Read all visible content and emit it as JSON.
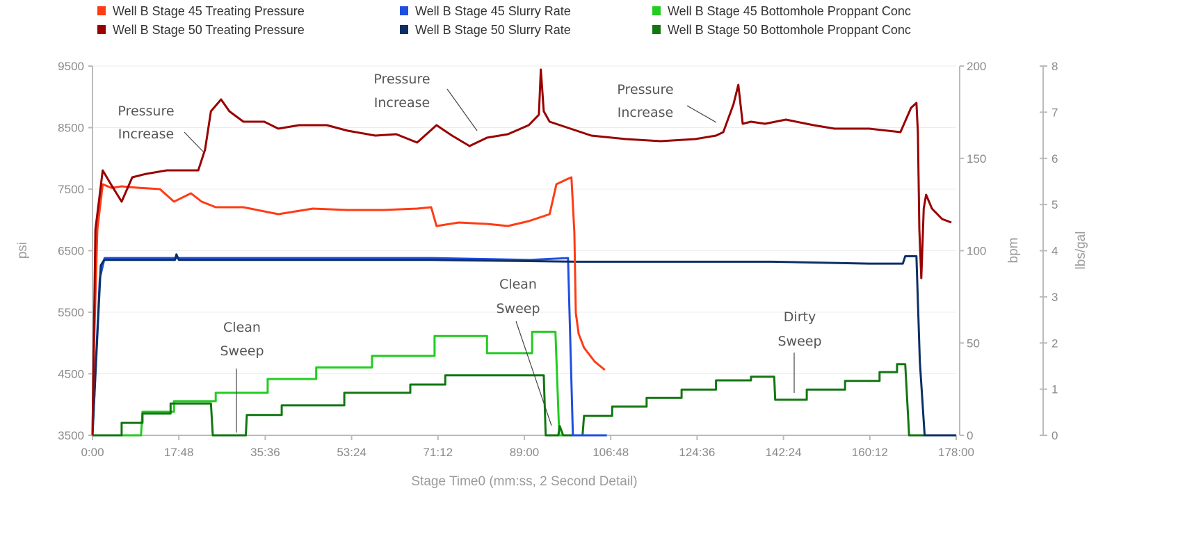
{
  "chart_data": {
    "type": "line",
    "xlabel": "Stage Time0 (mm:ss, 2 Second Detail)",
    "x_ticks": [
      "0:00",
      "17:48",
      "35:36",
      "53:24",
      "71:12",
      "89:00",
      "106:48",
      "124:36",
      "142:24",
      "160:12",
      "178:00"
    ],
    "xlim_minutes": [
      0,
      178
    ],
    "y_axes": [
      {
        "label": "psi",
        "lim": [
          3500,
          9500
        ],
        "ticks": [
          "3500",
          "4500",
          "5500",
          "6500",
          "7500",
          "8500",
          "9500"
        ],
        "side": "left"
      },
      {
        "label": "bpm",
        "lim": [
          0,
          200
        ],
        "ticks": [
          "0",
          "50",
          "100",
          "150",
          "200"
        ],
        "side": "right"
      },
      {
        "label": "lbs/gal",
        "lim": [
          0,
          8
        ],
        "ticks": [
          "0",
          "1",
          "2",
          "3",
          "4",
          "5",
          "6",
          "7",
          "8"
        ],
        "side": "right"
      }
    ],
    "grid": true,
    "legend_position": "top",
    "series": [
      {
        "name": "Well B Stage 45 Treating Pressure",
        "color": "#ff3b14",
        "axis": 0,
        "points": [
          [
            0,
            3500
          ],
          [
            0.3,
            4924
          ],
          [
            1,
            6845
          ],
          [
            2.1,
            7579
          ],
          [
            3.9,
            7522
          ],
          [
            6,
            7545
          ],
          [
            9.6,
            7522
          ],
          [
            13.9,
            7500
          ],
          [
            16.8,
            7297
          ],
          [
            20.3,
            7432
          ],
          [
            22.5,
            7297
          ],
          [
            25.4,
            7206
          ],
          [
            31.1,
            7206
          ],
          [
            38.3,
            7093
          ],
          [
            45.4,
            7184
          ],
          [
            52.6,
            7161
          ],
          [
            59.8,
            7161
          ],
          [
            66.9,
            7184
          ],
          [
            69.8,
            7206
          ],
          [
            70.9,
            6901
          ],
          [
            75.5,
            6958
          ],
          [
            81.3,
            6935
          ],
          [
            85.6,
            6901
          ],
          [
            89.9,
            6980
          ],
          [
            94.2,
            7093
          ],
          [
            95.6,
            7579
          ],
          [
            97.7,
            7658
          ],
          [
            98.7,
            7692
          ],
          [
            99.3,
            6800
          ],
          [
            99.6,
            5489
          ],
          [
            100.2,
            5150
          ],
          [
            101.3,
            4924
          ],
          [
            103.5,
            4698
          ],
          [
            105.6,
            4562
          ]
        ]
      },
      {
        "name": "Well B Stage 50 Treating Pressure",
        "color": "#990000",
        "axis": 0,
        "points": [
          [
            0,
            3500
          ],
          [
            0.6,
            6845
          ],
          [
            2.1,
            7805
          ],
          [
            3.8,
            7579
          ],
          [
            6,
            7297
          ],
          [
            8.2,
            7692
          ],
          [
            11,
            7748
          ],
          [
            15.3,
            7805
          ],
          [
            19.6,
            7805
          ],
          [
            21.8,
            7805
          ],
          [
            23.2,
            8144
          ],
          [
            24.4,
            8765
          ],
          [
            26.5,
            8958
          ],
          [
            28.2,
            8765
          ],
          [
            31.1,
            8596
          ],
          [
            35.4,
            8596
          ],
          [
            38.3,
            8483
          ],
          [
            42.6,
            8540
          ],
          [
            48.3,
            8540
          ],
          [
            52.6,
            8449
          ],
          [
            58.3,
            8370
          ],
          [
            62.6,
            8393
          ],
          [
            66.9,
            8257
          ],
          [
            70.9,
            8540
          ],
          [
            74.1,
            8370
          ],
          [
            77.7,
            8201
          ],
          [
            81.3,
            8336
          ],
          [
            85.6,
            8393
          ],
          [
            89.9,
            8540
          ],
          [
            92,
            8709
          ],
          [
            92.4,
            9444
          ],
          [
            93,
            8765
          ],
          [
            94.2,
            8596
          ],
          [
            98.5,
            8483
          ],
          [
            102.8,
            8370
          ],
          [
            109.9,
            8313
          ],
          [
            117.1,
            8280
          ],
          [
            124.2,
            8313
          ],
          [
            128.5,
            8370
          ],
          [
            130,
            8427
          ],
          [
            132.1,
            8879
          ],
          [
            133.1,
            9195
          ],
          [
            134,
            8562
          ],
          [
            135.7,
            8596
          ],
          [
            138.6,
            8562
          ],
          [
            142.9,
            8630
          ],
          [
            148.6,
            8540
          ],
          [
            152.9,
            8483
          ],
          [
            160.1,
            8483
          ],
          [
            166.5,
            8427
          ],
          [
            168.7,
            8822
          ],
          [
            169.8,
            8901
          ],
          [
            170.1,
            8427
          ],
          [
            170.4,
            6845
          ],
          [
            170.8,
            6054
          ],
          [
            171.3,
            7184
          ],
          [
            171.8,
            7410
          ],
          [
            173,
            7184
          ],
          [
            175.1,
            7014
          ],
          [
            177,
            6958
          ]
        ]
      },
      {
        "name": "Well B Stage 45 Slurry Rate",
        "color": "#1f4fe0",
        "axis": 1,
        "points": [
          [
            0,
            0
          ],
          [
            1.5,
            85
          ],
          [
            2.5,
            96
          ],
          [
            10,
            96
          ],
          [
            30,
            96
          ],
          [
            50,
            96
          ],
          [
            70,
            96
          ],
          [
            90,
            95
          ],
          [
            98,
            96
          ],
          [
            99,
            0
          ],
          [
            106,
            0
          ]
        ]
      },
      {
        "name": "Well B Stage 50 Slurry Rate",
        "color": "#0d2f66",
        "axis": 1,
        "points": [
          [
            0,
            0
          ],
          [
            1.7,
            92
          ],
          [
            2.4,
            95
          ],
          [
            17,
            95
          ],
          [
            17.3,
            98
          ],
          [
            17.8,
            95
          ],
          [
            40,
            95
          ],
          [
            70,
            95
          ],
          [
            100,
            94
          ],
          [
            120,
            94
          ],
          [
            140,
            94
          ],
          [
            160,
            93
          ],
          [
            167,
            93
          ],
          [
            167.5,
            97
          ],
          [
            169.8,
            97
          ],
          [
            170.5,
            40
          ],
          [
            171.5,
            0
          ],
          [
            178,
            0
          ]
        ]
      },
      {
        "name": "Well B Stage 45 Bottomhole Proppant Conc",
        "color": "#22cc22",
        "axis": 2,
        "points": [
          [
            0,
            0
          ],
          [
            10,
            0
          ],
          [
            10.3,
            0.51
          ],
          [
            16.8,
            0.51
          ],
          [
            16.8,
            0.74
          ],
          [
            25.4,
            0.74
          ],
          [
            25.4,
            0.92
          ],
          [
            36.1,
            0.92
          ],
          [
            36.1,
            1.22
          ],
          [
            46.1,
            1.22
          ],
          [
            46.1,
            1.47
          ],
          [
            57.6,
            1.47
          ],
          [
            57.6,
            1.72
          ],
          [
            70.5,
            1.72
          ],
          [
            70.5,
            2.15
          ],
          [
            81.3,
            2.15
          ],
          [
            81.3,
            1.78
          ],
          [
            90.6,
            1.78
          ],
          [
            90.6,
            2.24
          ],
          [
            95.4,
            2.24
          ],
          [
            96.2,
            0
          ],
          [
            106,
            0
          ]
        ]
      },
      {
        "name": "Well B Stage 50 Bottomhole Proppant Conc",
        "color": "#117711",
        "axis": 2,
        "points": [
          [
            0,
            0
          ],
          [
            6,
            0
          ],
          [
            6,
            0.27
          ],
          [
            10.3,
            0.27
          ],
          [
            10.3,
            0.47
          ],
          [
            16.1,
            0.47
          ],
          [
            16.1,
            0.69
          ],
          [
            24.4,
            0.69
          ],
          [
            24.8,
            0
          ],
          [
            31.6,
            0
          ],
          [
            31.8,
            0.44
          ],
          [
            39,
            0.44
          ],
          [
            39,
            0.65
          ],
          [
            51.9,
            0.65
          ],
          [
            51.9,
            0.92
          ],
          [
            65.5,
            0.92
          ],
          [
            65.5,
            1.1
          ],
          [
            72.7,
            1.1
          ],
          [
            72.7,
            1.3
          ],
          [
            93,
            1.3
          ],
          [
            93.4,
            0
          ],
          [
            96,
            0
          ],
          [
            96.3,
            0.2
          ],
          [
            97,
            0
          ],
          [
            101,
            0
          ],
          [
            101.3,
            0.42
          ],
          [
            107.1,
            0.42
          ],
          [
            107.1,
            0.62
          ],
          [
            114.2,
            0.62
          ],
          [
            114.2,
            0.81
          ],
          [
            121.4,
            0.81
          ],
          [
            121.4,
            0.99
          ],
          [
            128.5,
            0.99
          ],
          [
            128.5,
            1.19
          ],
          [
            135.7,
            1.19
          ],
          [
            135.7,
            1.27
          ],
          [
            140.5,
            1.27
          ],
          [
            140.7,
            0.77
          ],
          [
            147.2,
            0.77
          ],
          [
            147.2,
            0.99
          ],
          [
            155.1,
            0.99
          ],
          [
            155.1,
            1.18
          ],
          [
            162.2,
            1.18
          ],
          [
            162.2,
            1.37
          ],
          [
            165.8,
            1.37
          ],
          [
            165.8,
            1.54
          ],
          [
            167.5,
            1.54
          ],
          [
            168.3,
            0
          ],
          [
            178,
            0
          ]
        ]
      }
    ],
    "annotations": [
      {
        "lines": [
          "Pressure",
          "Increase"
        ]
      },
      {
        "lines": [
          "Pressure",
          "Increase"
        ]
      },
      {
        "lines": [
          "Pressure",
          "Increase"
        ]
      },
      {
        "lines": [
          "Clean",
          "Sweep"
        ]
      },
      {
        "lines": [
          "Clean",
          "Sweep"
        ]
      },
      {
        "lines": [
          "Dirty",
          "Sweep"
        ]
      }
    ]
  }
}
